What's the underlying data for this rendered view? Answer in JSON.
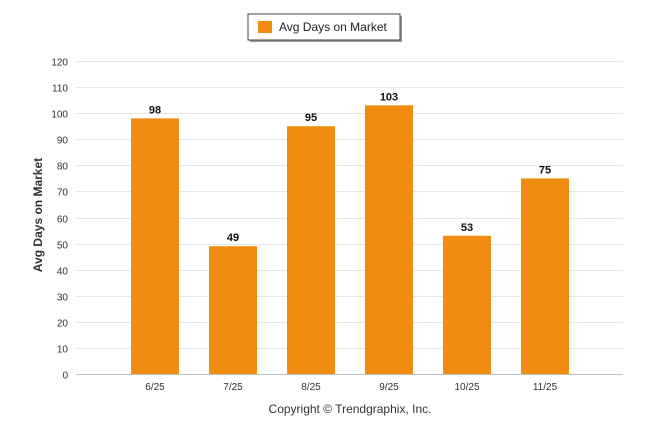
{
  "chart_data": {
    "type": "bar",
    "categories": [
      "6/25",
      "7/25",
      "8/25",
      "9/25",
      "10/25",
      "11/25"
    ],
    "series": [
      {
        "name": "Avg Days on Market",
        "values": [
          98,
          49,
          95,
          103,
          53,
          75
        ],
        "color": "#F08C12"
      }
    ],
    "ylabel": "Avg Days on Market",
    "xlabel": "",
    "ylim": [
      0,
      120
    ],
    "yticks": [
      0,
      10,
      20,
      30,
      40,
      50,
      60,
      70,
      80,
      90,
      100,
      110,
      120
    ],
    "grid": true,
    "legend_position": "top-center",
    "data_labels": true
  },
  "footer": {
    "copyright": "Copyright © Trendgraphix, Inc."
  },
  "colors": {
    "grid": "#e6e6e6",
    "axis": "#c0c0c0",
    "text": "#333333"
  }
}
